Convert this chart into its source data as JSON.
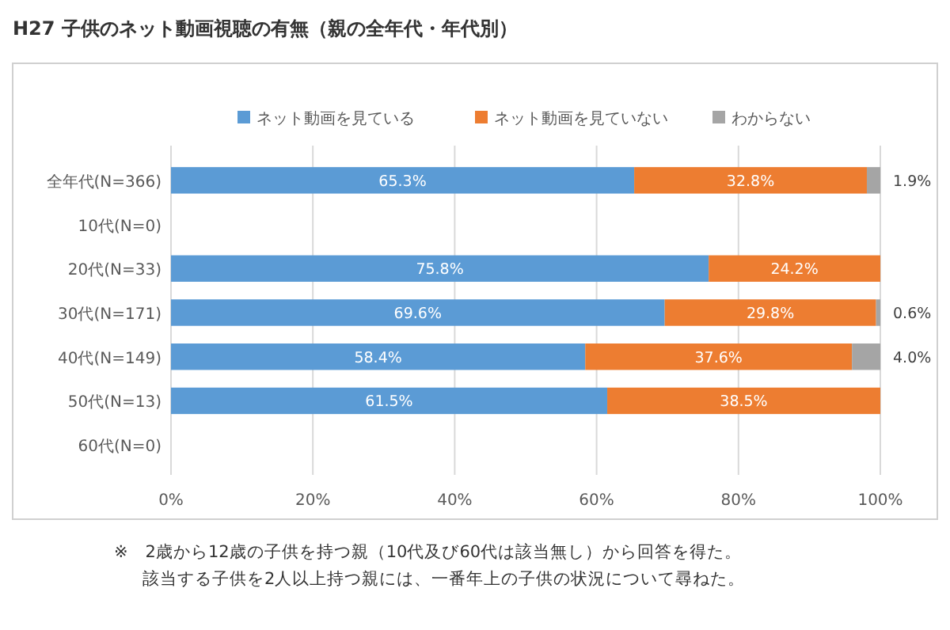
{
  "chart_data": {
    "type": "bar",
    "orientation": "horizontal",
    "stacked": true,
    "title": "H27 子供のネット動画視聴の有無（親の全年代・年代別）",
    "categories": [
      "全年代(N=366)",
      "10代(N=0)",
      "20代(N=33)",
      "30代(N=171)",
      "40代(N=149)",
      "50代(N=13)",
      "60代(N=0)"
    ],
    "series": [
      {
        "name": "ネット動画を見ている",
        "color": "#5b9bd5",
        "values": [
          65.3,
          null,
          75.8,
          69.6,
          58.4,
          61.5,
          null
        ],
        "value_labels": [
          "65.3%",
          null,
          "75.8%",
          "69.6%",
          "58.4%",
          "61.5%",
          null
        ]
      },
      {
        "name": "ネット動画を見ていない",
        "color": "#ed7d31",
        "values": [
          32.8,
          null,
          24.2,
          29.8,
          37.6,
          38.5,
          null
        ],
        "value_labels": [
          "32.8%",
          null,
          "24.2%",
          "29.8%",
          "37.6%",
          "38.5%",
          null
        ]
      },
      {
        "name": "わからない",
        "color": "#a5a5a5",
        "values": [
          1.9,
          null,
          null,
          0.6,
          4.0,
          null,
          null
        ],
        "value_labels": [
          "1.9%",
          null,
          null,
          "0.6%",
          "4.0%",
          null,
          null
        ]
      }
    ],
    "xlim": [
      0,
      100
    ],
    "xticks": [
      {
        "value": 0,
        "label": "0%"
      },
      {
        "value": 20,
        "label": "20%"
      },
      {
        "value": 40,
        "label": "40%"
      },
      {
        "value": 60,
        "label": "60%"
      },
      {
        "value": 80,
        "label": "80%"
      },
      {
        "value": 100,
        "label": "100%"
      }
    ],
    "grid": "x",
    "legend": "top",
    "annotations": [
      "※　2歳から12歳の子供を持つ親（10代及び60代は該当無し）から回答を得た。",
      "該当する子供を2人以上持つ親には、一番年上の子供の状況について尋ねた。"
    ]
  }
}
